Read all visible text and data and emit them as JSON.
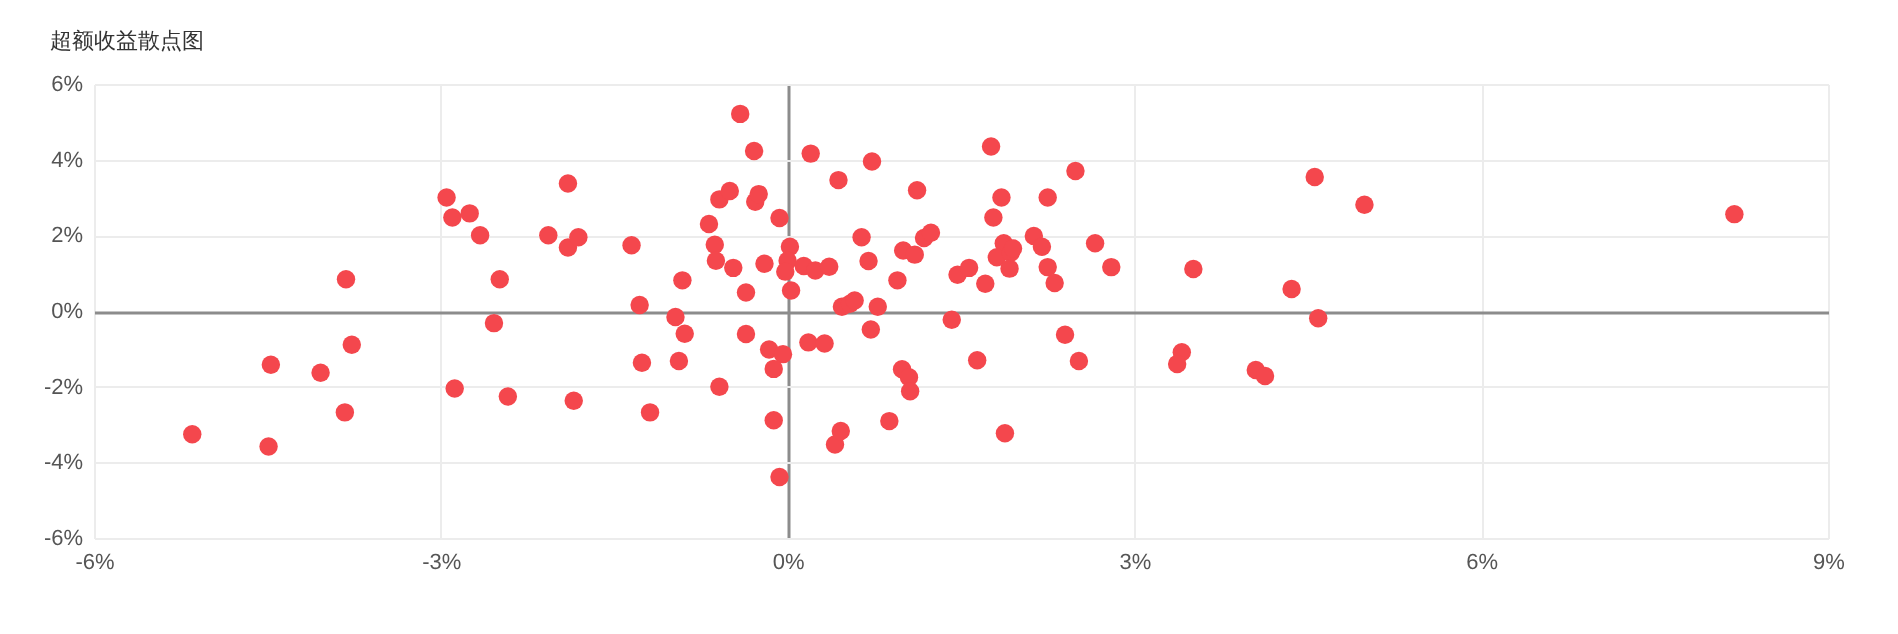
{
  "chart_data": {
    "type": "scatter",
    "title": "超额收益散点图",
    "xlim": [
      -6,
      9
    ],
    "xticks": [
      {
        "value": -6,
        "label": "-6%"
      },
      {
        "value": -3,
        "label": "-3%"
      },
      {
        "value": 0,
        "label": "0%"
      },
      {
        "value": 3,
        "label": "3%"
      },
      {
        "value": 6,
        "label": "6%"
      },
      {
        "value": 9,
        "label": "9%"
      }
    ],
    "ylim": [
      -6,
      6
    ],
    "yticks": [
      {
        "value": -6,
        "label": "-6%"
      },
      {
        "value": -4,
        "label": "-4%"
      },
      {
        "value": -2,
        "label": "-2%"
      },
      {
        "value": 0,
        "label": "0%"
      },
      {
        "value": 2,
        "label": "2%"
      },
      {
        "value": 4,
        "label": "4%"
      },
      {
        "value": 6,
        "label": "6%"
      }
    ],
    "grid": true,
    "marker": "circle",
    "series": [
      {
        "color": "#f4474d",
        "x": [
          -5.15,
          -4.49,
          -4.47,
          -4.04,
          -3.83,
          -3.82,
          -3.77,
          -2.95,
          -2.9,
          -2.75,
          -2.66,
          -2.49,
          -2.54,
          -2.88,
          -2.42,
          -2.07,
          -1.9,
          -1.9,
          -1.81,
          -1.85,
          -1.35,
          -1.28,
          -1.26,
          -1.19,
          -0.91,
          -0.97,
          -0.89,
          -0.94,
          -0.59,
          -0.68,
          -0.63,
          -0.62,
          -0.59,
          -0.5,
          -0.47,
          -0.41,
          -0.29,
          -0.28,
          -0.25,
          -0.36,
          -0.36,
          -0.2,
          -0.07,
          -0.16,
          -0.04,
          -0.12,
          -0.12,
          -0.07,
          0.02,
          0.0,
          -0.02,
          0.03,
          0.14,
          0.24,
          0.36,
          0.2,
          0.18,
          0.32,
          0.44,
          0.47,
          0.54,
          0.58,
          0.64,
          0.7,
          0.73,
          0.72,
          0.78,
          0.41,
          0.46,
          0.88,
          0.95,
          1.0,
          1.12,
          1.1,
          1.18,
          1.24,
          0.99,
          1.05,
          1.06,
          1.42,
          1.47,
          1.57,
          1.64,
          1.71,
          1.76,
          1.85,
          1.78,
          1.87,
          1.81,
          1.93,
          1.95,
          1.92,
          1.88,
          2.13,
          2.2,
          2.25,
          2.25,
          2.31,
          2.4,
          2.52,
          2.49,
          2.66,
          2.8,
          3.51,
          3.41,
          3.37,
          4.56,
          4.99,
          4.36,
          4.59,
          4.05,
          4.13,
          8.19
        ],
        "values": [
          -3.26,
          -3.58,
          -1.42,
          -1.63,
          -2.68,
          0.84,
          -0.89,
          3.0,
          2.47,
          2.58,
          2.0,
          0.84,
          -0.32,
          -2.05,
          -2.26,
          2.0,
          3.37,
          1.68,
          1.95,
          -2.37,
          1.74,
          0.16,
          -1.37,
          -2.68,
          0.81,
          -0.16,
          -0.6,
          -1.32,
          -2.0,
          2.3,
          1.75,
          1.33,
          2.95,
          3.17,
          1.14,
          5.21,
          4.23,
          2.89,
          3.09,
          0.49,
          -0.61,
          1.25,
          2.46,
          -1.02,
          -1.14,
          -1.53,
          -2.89,
          -4.39,
          1.7,
          1.33,
          1.04,
          0.54,
          1.19,
          1.07,
          1.17,
          4.16,
          -0.83,
          -0.86,
          3.46,
          0.11,
          0.19,
          0.28,
          1.95,
          1.32,
          3.95,
          -0.49,
          0.11,
          -3.53,
          -3.17,
          -2.91,
          0.81,
          1.6,
          3.19,
          1.49,
          1.93,
          2.07,
          -1.54,
          -1.75,
          -2.12,
          -0.23,
          0.96,
          1.14,
          -1.3,
          0.72,
          4.35,
          3.0,
          2.47,
          1.79,
          1.42,
          1.54,
          1.65,
          1.12,
          -3.23,
          1.98,
          1.7,
          3.0,
          1.16,
          0.74,
          -0.63,
          -1.32,
          3.7,
          1.79,
          1.16,
          1.11,
          -1.09,
          -1.4,
          3.54,
          2.81,
          0.58,
          -0.19,
          -1.56,
          -1.72,
          2.56
        ]
      }
    ]
  }
}
